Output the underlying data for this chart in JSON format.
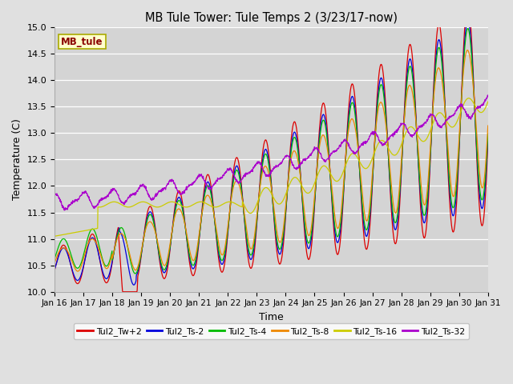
{
  "title": "MB Tule Tower: Tule Temps 2 (3/23/17-now)",
  "xlabel": "Time",
  "ylabel": "Temperature (C)",
  "ylim": [
    10.0,
    15.0
  ],
  "yticks": [
    10.0,
    10.5,
    11.0,
    11.5,
    12.0,
    12.5,
    13.0,
    13.5,
    14.0,
    14.5,
    15.0
  ],
  "fig_bg": "#e0e0e0",
  "plot_bg": "#d4d4d4",
  "station_label": "MB_tule",
  "series_colors": {
    "Tul2_Tw+2": "#dd0000",
    "Tul2_Ts-2": "#0000dd",
    "Tul2_Ts-4": "#00bb00",
    "Tul2_Ts-8": "#ee8800",
    "Tul2_Ts-16": "#cccc00",
    "Tul2_Ts-32": "#aa00cc"
  },
  "xtick_labels": [
    "Jan 16",
    "Jan 17",
    "Jan 18",
    "Jan 19",
    "Jan 20",
    "Jan 21",
    "Jan 22",
    "Jan 23",
    "Jan 24",
    "Jan 25",
    "Jan 26",
    "Jan 27",
    "Jan 28",
    "Jan 29",
    "Jan 30",
    "Jan 31"
  ]
}
